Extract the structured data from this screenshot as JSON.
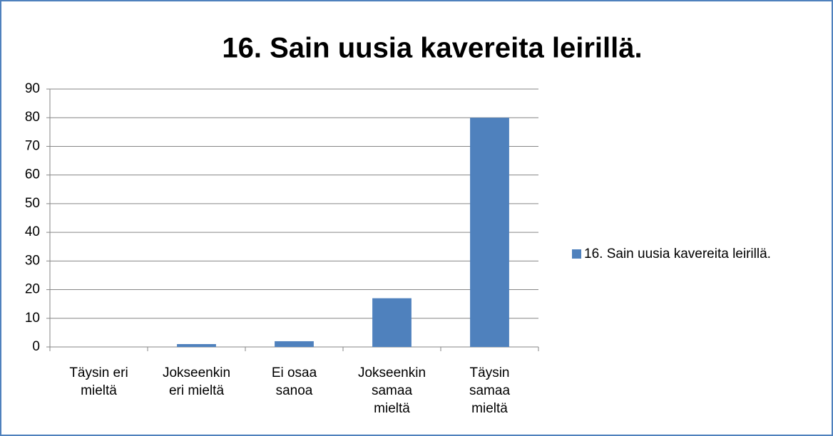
{
  "chart_data": {
    "type": "bar",
    "title": "16. Sain uusia kavereita leirillä.",
    "categories": [
      "Täysin eri mieltä",
      "Jokseenkin eri mieltä",
      "Ei osaa sanoa",
      "Jokseenkin samaa mieltä",
      "Täysin samaa mieltä"
    ],
    "series": [
      {
        "name": "16. Sain uusia kavereita leirillä.",
        "color": "#4f81bd",
        "values": [
          0,
          1,
          2,
          17,
          80
        ]
      }
    ],
    "ylim": [
      0,
      90
    ],
    "yticks": [
      0,
      10,
      20,
      30,
      40,
      50,
      60,
      70,
      80,
      90
    ],
    "grid": true,
    "legend": "right"
  }
}
